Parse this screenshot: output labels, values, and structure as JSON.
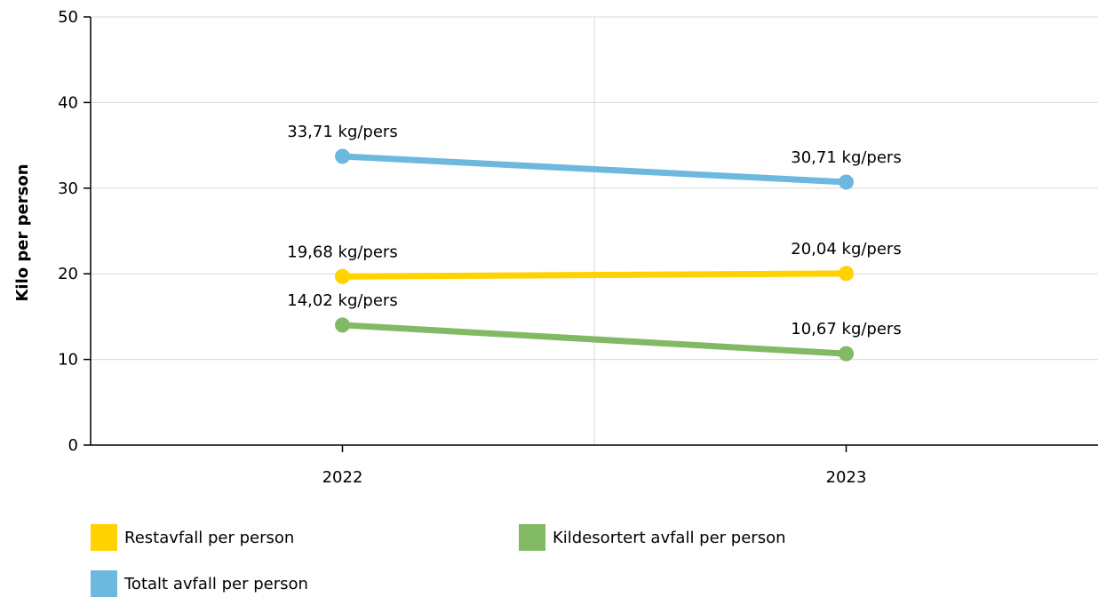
{
  "chart_data": {
    "type": "line",
    "title": "",
    "xlabel": "",
    "ylabel": "Kilo per person",
    "categories": [
      "2022",
      "2023"
    ],
    "ylim": [
      0,
      50
    ],
    "yticks": [
      0,
      10,
      20,
      30,
      40,
      50
    ],
    "grid": true,
    "legend_position": "bottom-left",
    "series": [
      {
        "name": "Restavfall per person",
        "color": "#ffd200",
        "values": [
          19.68,
          20.04
        ],
        "labels": [
          "19,68 kg/pers",
          "20,04 kg/pers"
        ]
      },
      {
        "name": "Kildesortert avfall per person",
        "color": "#82b964",
        "values": [
          14.02,
          10.67
        ],
        "labels": [
          "14,02 kg/pers",
          "10,67 kg/pers"
        ]
      },
      {
        "name": "Totalt avfall per person",
        "color": "#6cb8de",
        "values": [
          33.71,
          30.71
        ],
        "labels": [
          "33,71 kg/pers",
          "30,71 kg/pers"
        ]
      }
    ]
  }
}
